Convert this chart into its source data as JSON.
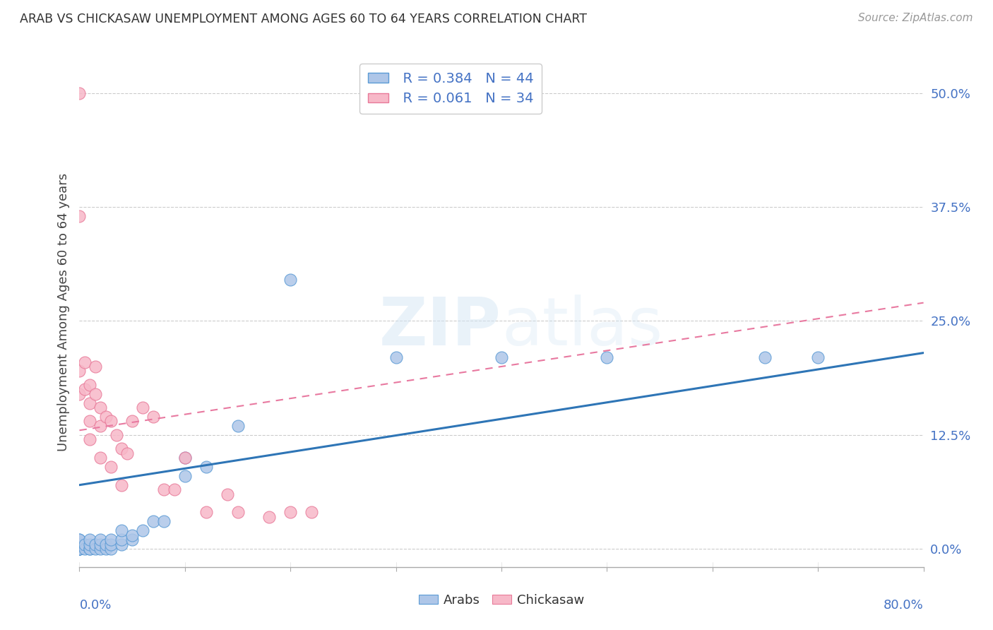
{
  "title": "ARAB VS CHICKASAW UNEMPLOYMENT AMONG AGES 60 TO 64 YEARS CORRELATION CHART",
  "source": "Source: ZipAtlas.com",
  "ylabel": "Unemployment Among Ages 60 to 64 years",
  "ytick_labels": [
    "0.0%",
    "12.5%",
    "25.0%",
    "37.5%",
    "50.0%"
  ],
  "ytick_values": [
    0.0,
    0.125,
    0.25,
    0.375,
    0.5
  ],
  "xlim": [
    0.0,
    0.8
  ],
  "ylim": [
    -0.02,
    0.54
  ],
  "legend_r_arab": "R = 0.384",
  "legend_n_arab": "N = 44",
  "legend_r_chickasaw": "R = 0.061",
  "legend_n_chickasaw": "N = 34",
  "arab_color": "#aec6e8",
  "arab_edge_color": "#5b9bd5",
  "chickasaw_color": "#f7b8c8",
  "chickasaw_edge_color": "#e87a99",
  "arab_line_color": "#2e75b6",
  "chickasaw_line_color": "#e879a0",
  "tick_color": "#4472c4",
  "watermark": "ZIPatlas",
  "background_color": "#ffffff",
  "arab_x": [
    0.0,
    0.0,
    0.0,
    0.0,
    0.0,
    0.0,
    0.0,
    0.0,
    0.0,
    0.0,
    0.005,
    0.005,
    0.01,
    0.01,
    0.01,
    0.01,
    0.015,
    0.015,
    0.02,
    0.02,
    0.02,
    0.025,
    0.025,
    0.03,
    0.03,
    0.03,
    0.04,
    0.04,
    0.04,
    0.05,
    0.05,
    0.06,
    0.07,
    0.08,
    0.1,
    0.1,
    0.12,
    0.15,
    0.2,
    0.3,
    0.4,
    0.5,
    0.65,
    0.7
  ],
  "arab_y": [
    0.0,
    0.0,
    0.0,
    0.0,
    0.0,
    0.005,
    0.005,
    0.005,
    0.01,
    0.01,
    0.0,
    0.005,
    0.0,
    0.0,
    0.005,
    0.01,
    0.0,
    0.005,
    0.0,
    0.005,
    0.01,
    0.0,
    0.005,
    0.0,
    0.005,
    0.01,
    0.005,
    0.01,
    0.02,
    0.01,
    0.015,
    0.02,
    0.03,
    0.03,
    0.08,
    0.1,
    0.09,
    0.135,
    0.295,
    0.21,
    0.21,
    0.21,
    0.21,
    0.21
  ],
  "chickasaw_x": [
    0.0,
    0.0,
    0.0,
    0.0,
    0.005,
    0.005,
    0.01,
    0.01,
    0.01,
    0.01,
    0.015,
    0.015,
    0.02,
    0.02,
    0.02,
    0.025,
    0.03,
    0.03,
    0.035,
    0.04,
    0.04,
    0.045,
    0.05,
    0.06,
    0.07,
    0.08,
    0.09,
    0.1,
    0.12,
    0.14,
    0.15,
    0.18,
    0.2,
    0.22
  ],
  "chickasaw_y": [
    0.5,
    0.365,
    0.195,
    0.17,
    0.205,
    0.175,
    0.18,
    0.16,
    0.14,
    0.12,
    0.2,
    0.17,
    0.155,
    0.135,
    0.1,
    0.145,
    0.14,
    0.09,
    0.125,
    0.11,
    0.07,
    0.105,
    0.14,
    0.155,
    0.145,
    0.065,
    0.065,
    0.1,
    0.04,
    0.06,
    0.04,
    0.035,
    0.04,
    0.04
  ],
  "arab_trend_start_y": 0.07,
  "arab_trend_end_y": 0.215,
  "chickasaw_trend_start_y": 0.13,
  "chickasaw_trend_end_y": 0.27
}
